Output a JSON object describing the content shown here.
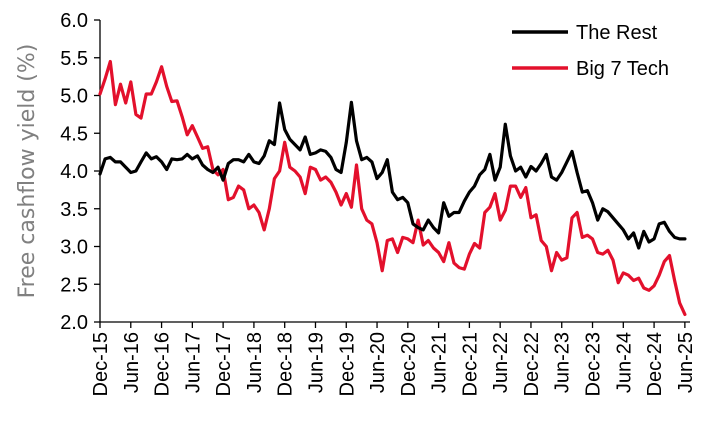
{
  "chart_data": {
    "type": "line",
    "ylabel": "Free cashflow yield (%)",
    "xlabel": "",
    "ylim": [
      2.0,
      6.0
    ],
    "yticks": [
      "2.0",
      "2.5",
      "3.0",
      "3.5",
      "4.0",
      "4.5",
      "5.0",
      "5.5",
      "6.0"
    ],
    "x_tick_labels": [
      "Dec-15",
      "Jun-16",
      "Dec-16",
      "Jun-17",
      "Dec-17",
      "Jun-18",
      "Dec-18",
      "Jun-19",
      "Dec-19",
      "Jun-20",
      "Dec-20",
      "Jun-21",
      "Dec-21",
      "Jun-22",
      "Dec-22",
      "Jun-23",
      "Dec-23",
      "Jun-24",
      "Dec-24",
      "Jun-25"
    ],
    "x_range": [
      "Dec-15",
      "Jul-25"
    ],
    "grid": false,
    "legend_position": "top-right",
    "series": [
      {
        "name": "The Rest",
        "color": "#000000",
        "points": [
          [
            "Dec-15",
            3.96
          ],
          [
            "Jan-16",
            4.16
          ],
          [
            "Feb-16",
            4.18
          ],
          [
            "Mar-16",
            4.12
          ],
          [
            "Apr-16",
            4.12
          ],
          [
            "May-16",
            4.05
          ],
          [
            "Jun-16",
            3.98
          ],
          [
            "Jul-16",
            4.0
          ],
          [
            "Aug-16",
            4.12
          ],
          [
            "Sep-16",
            4.24
          ],
          [
            "Oct-16",
            4.16
          ],
          [
            "Nov-16",
            4.19
          ],
          [
            "Dec-16",
            4.12
          ],
          [
            "Jan-17",
            4.02
          ],
          [
            "Feb-17",
            4.16
          ],
          [
            "Mar-17",
            4.15
          ],
          [
            "Apr-17",
            4.16
          ],
          [
            "May-17",
            4.22
          ],
          [
            "Jun-17",
            4.16
          ],
          [
            "Jul-17",
            4.2
          ],
          [
            "Aug-17",
            4.08
          ],
          [
            "Sep-17",
            4.02
          ],
          [
            "Oct-17",
            3.98
          ],
          [
            "Nov-17",
            4.05
          ],
          [
            "Dec-17",
            3.88
          ],
          [
            "Jan-18",
            4.1
          ],
          [
            "Feb-18",
            4.15
          ],
          [
            "Mar-18",
            4.15
          ],
          [
            "Apr-18",
            4.12
          ],
          [
            "May-18",
            4.22
          ],
          [
            "Jun-18",
            4.12
          ],
          [
            "Jul-18",
            4.1
          ],
          [
            "Aug-18",
            4.2
          ],
          [
            "Sep-18",
            4.4
          ],
          [
            "Oct-18",
            4.35
          ],
          [
            "Nov-18",
            4.9
          ],
          [
            "Dec-18",
            4.55
          ],
          [
            "Jan-19",
            4.42
          ],
          [
            "Feb-19",
            4.35
          ],
          [
            "Mar-19",
            4.28
          ],
          [
            "Apr-19",
            4.45
          ],
          [
            "May-19",
            4.22
          ],
          [
            "Jun-19",
            4.24
          ],
          [
            "Jul-19",
            4.28
          ],
          [
            "Aug-19",
            4.26
          ],
          [
            "Sep-19",
            4.18
          ],
          [
            "Oct-19",
            4.02
          ],
          [
            "Nov-19",
            3.98
          ],
          [
            "Dec-19",
            4.38
          ],
          [
            "Jan-20",
            4.91
          ],
          [
            "Feb-20",
            4.4
          ],
          [
            "Mar-20",
            4.15
          ],
          [
            "Apr-20",
            4.18
          ],
          [
            "May-20",
            4.12
          ],
          [
            "Jun-20",
            3.9
          ],
          [
            "Jul-20",
            3.98
          ],
          [
            "Aug-20",
            4.15
          ],
          [
            "Sep-20",
            3.72
          ],
          [
            "Oct-20",
            3.62
          ],
          [
            "Nov-20",
            3.65
          ],
          [
            "Dec-20",
            3.58
          ],
          [
            "Jan-21",
            3.3
          ],
          [
            "Feb-21",
            3.25
          ],
          [
            "Mar-21",
            3.22
          ],
          [
            "Apr-21",
            3.35
          ],
          [
            "May-21",
            3.25
          ],
          [
            "Jun-21",
            3.18
          ],
          [
            "Jul-21",
            3.58
          ],
          [
            "Aug-21",
            3.4
          ],
          [
            "Sep-21",
            3.45
          ],
          [
            "Oct-21",
            3.45
          ],
          [
            "Nov-21",
            3.6
          ],
          [
            "Dec-21",
            3.72
          ],
          [
            "Jan-22",
            3.8
          ],
          [
            "Feb-22",
            3.95
          ],
          [
            "Mar-22",
            4.02
          ],
          [
            "Apr-22",
            4.22
          ],
          [
            "May-22",
            3.88
          ],
          [
            "Jun-22",
            4.05
          ],
          [
            "Jul-22",
            4.62
          ],
          [
            "Aug-22",
            4.2
          ],
          [
            "Sep-22",
            4.0
          ],
          [
            "Oct-22",
            4.05
          ],
          [
            "Nov-22",
            3.92
          ],
          [
            "Dec-22",
            4.06
          ],
          [
            "Jan-23",
            4.0
          ],
          [
            "Feb-23",
            4.1
          ],
          [
            "Mar-23",
            4.22
          ],
          [
            "Apr-23",
            3.92
          ],
          [
            "May-23",
            3.88
          ],
          [
            "Jun-23",
            3.98
          ],
          [
            "Jul-23",
            4.12
          ],
          [
            "Aug-23",
            4.26
          ],
          [
            "Sep-23",
            3.98
          ],
          [
            "Oct-23",
            3.72
          ],
          [
            "Nov-23",
            3.74
          ],
          [
            "Dec-23",
            3.58
          ],
          [
            "Jan-24",
            3.35
          ],
          [
            "Feb-24",
            3.5
          ],
          [
            "Mar-24",
            3.46
          ],
          [
            "Apr-24",
            3.38
          ],
          [
            "May-24",
            3.3
          ],
          [
            "Jun-24",
            3.22
          ],
          [
            "Jul-24",
            3.1
          ],
          [
            "Aug-24",
            3.18
          ],
          [
            "Sep-24",
            2.98
          ],
          [
            "Oct-24",
            3.2
          ],
          [
            "Nov-24",
            3.06
          ],
          [
            "Dec-24",
            3.1
          ],
          [
            "Jan-25",
            3.3
          ],
          [
            "Feb-25",
            3.32
          ],
          [
            "Mar-25",
            3.2
          ],
          [
            "Apr-25",
            3.12
          ],
          [
            "May-25",
            3.1
          ],
          [
            "Jun-25",
            3.1
          ]
        ]
      },
      {
        "name": "Big 7 Tech",
        "color": "#e3102c",
        "points": [
          [
            "Dec-15",
            5.02
          ],
          [
            "Jan-16",
            5.22
          ],
          [
            "Feb-16",
            5.45
          ],
          [
            "Mar-16",
            4.88
          ],
          [
            "Apr-16",
            5.15
          ],
          [
            "May-16",
            4.9
          ],
          [
            "Jun-16",
            5.18
          ],
          [
            "Jul-16",
            4.75
          ],
          [
            "Aug-16",
            4.7
          ],
          [
            "Sep-16",
            5.02
          ],
          [
            "Oct-16",
            5.02
          ],
          [
            "Nov-16",
            5.18
          ],
          [
            "Dec-16",
            5.38
          ],
          [
            "Jan-17",
            5.12
          ],
          [
            "Feb-17",
            4.92
          ],
          [
            "Mar-17",
            4.93
          ],
          [
            "Apr-17",
            4.72
          ],
          [
            "May-17",
            4.48
          ],
          [
            "Jun-17",
            4.6
          ],
          [
            "Jul-17",
            4.45
          ],
          [
            "Aug-17",
            4.3
          ],
          [
            "Sep-17",
            4.32
          ],
          [
            "Oct-17",
            4.02
          ],
          [
            "Nov-17",
            3.95
          ],
          [
            "Dec-17",
            4.02
          ],
          [
            "Jan-18",
            3.62
          ],
          [
            "Feb-18",
            3.65
          ],
          [
            "Mar-18",
            3.8
          ],
          [
            "Apr-18",
            3.75
          ],
          [
            "May-18",
            3.5
          ],
          [
            "Jun-18",
            3.55
          ],
          [
            "Jul-18",
            3.45
          ],
          [
            "Aug-18",
            3.22
          ],
          [
            "Sep-18",
            3.5
          ],
          [
            "Oct-18",
            3.9
          ],
          [
            "Nov-18",
            4.0
          ],
          [
            "Dec-18",
            4.38
          ],
          [
            "Jan-19",
            4.05
          ],
          [
            "Feb-19",
            4.0
          ],
          [
            "Mar-19",
            3.92
          ],
          [
            "Apr-19",
            3.7
          ],
          [
            "May-19",
            4.05
          ],
          [
            "Jun-19",
            4.02
          ],
          [
            "Jul-19",
            3.88
          ],
          [
            "Aug-19",
            3.92
          ],
          [
            "Sep-19",
            3.85
          ],
          [
            "Oct-19",
            3.72
          ],
          [
            "Nov-19",
            3.55
          ],
          [
            "Dec-19",
            3.7
          ],
          [
            "Jan-20",
            3.52
          ],
          [
            "Feb-20",
            4.08
          ],
          [
            "Mar-20",
            3.5
          ],
          [
            "Apr-20",
            3.35
          ],
          [
            "May-20",
            3.3
          ],
          [
            "Jun-20",
            3.05
          ],
          [
            "Jul-20",
            2.68
          ],
          [
            "Aug-20",
            3.08
          ],
          [
            "Sep-20",
            3.1
          ],
          [
            "Oct-20",
            2.92
          ],
          [
            "Nov-20",
            3.12
          ],
          [
            "Dec-20",
            3.1
          ],
          [
            "Jan-21",
            3.05
          ],
          [
            "Feb-21",
            3.35
          ],
          [
            "Mar-21",
            3.02
          ],
          [
            "Apr-21",
            3.08
          ],
          [
            "May-21",
            2.98
          ],
          [
            "Jun-21",
            2.92
          ],
          [
            "Jul-21",
            2.8
          ],
          [
            "Aug-21",
            3.05
          ],
          [
            "Sep-21",
            2.78
          ],
          [
            "Oct-21",
            2.72
          ],
          [
            "Nov-21",
            2.7
          ],
          [
            "Dec-21",
            2.9
          ],
          [
            "Jan-22",
            3.04
          ],
          [
            "Feb-22",
            2.98
          ],
          [
            "Mar-22",
            3.45
          ],
          [
            "Apr-22",
            3.52
          ],
          [
            "May-22",
            3.7
          ],
          [
            "Jun-22",
            3.35
          ],
          [
            "Jul-22",
            3.48
          ],
          [
            "Aug-22",
            3.8
          ],
          [
            "Sep-22",
            3.8
          ],
          [
            "Oct-22",
            3.65
          ],
          [
            "Nov-22",
            3.78
          ],
          [
            "Dec-22",
            3.38
          ],
          [
            "Jan-23",
            3.42
          ],
          [
            "Feb-23",
            3.08
          ],
          [
            "Mar-23",
            3.0
          ],
          [
            "Apr-23",
            2.68
          ],
          [
            "May-23",
            2.92
          ],
          [
            "Jun-23",
            2.82
          ],
          [
            "Jul-23",
            2.85
          ],
          [
            "Aug-23",
            3.38
          ],
          [
            "Sep-23",
            3.45
          ],
          [
            "Oct-23",
            3.12
          ],
          [
            "Nov-23",
            3.15
          ],
          [
            "Dec-23",
            3.1
          ],
          [
            "Jan-24",
            2.92
          ],
          [
            "Feb-24",
            2.9
          ],
          [
            "Mar-24",
            2.95
          ],
          [
            "Apr-24",
            2.82
          ],
          [
            "May-24",
            2.52
          ],
          [
            "Jun-24",
            2.65
          ],
          [
            "Jul-24",
            2.62
          ],
          [
            "Aug-24",
            2.55
          ],
          [
            "Sep-24",
            2.58
          ],
          [
            "Oct-24",
            2.45
          ],
          [
            "Nov-24",
            2.42
          ],
          [
            "Dec-24",
            2.48
          ],
          [
            "Jan-25",
            2.62
          ],
          [
            "Feb-25",
            2.8
          ],
          [
            "Mar-25",
            2.88
          ],
          [
            "Apr-25",
            2.55
          ],
          [
            "May-25",
            2.25
          ],
          [
            "Jun-25",
            2.1
          ]
        ]
      }
    ]
  }
}
